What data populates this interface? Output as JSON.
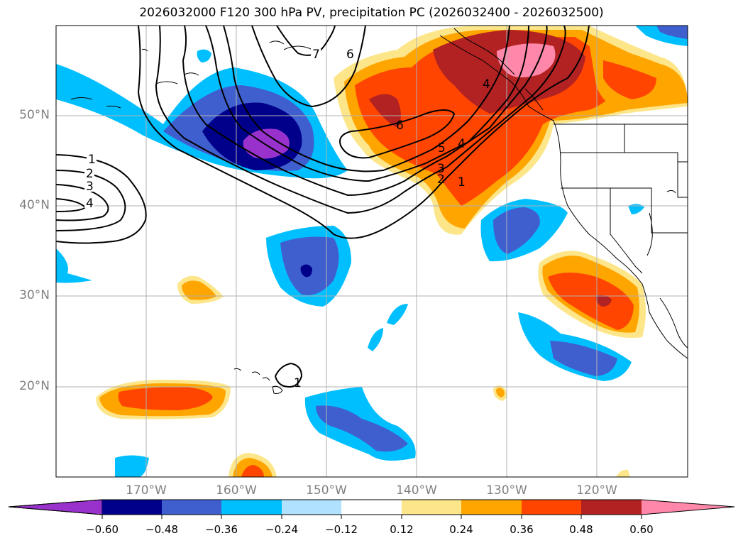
{
  "title": "2026032000 F120 300 hPa PV, precipitation PC (2026032400 - 2026032500)",
  "lat_labels": [
    "50°N",
    "40°N",
    "30°N",
    "20°N"
  ],
  "lon_labels": [
    "170°W",
    "160°W",
    "150°W",
    "140°W",
    "130°W",
    "120°W"
  ],
  "colorbar": {
    "ticks": [
      "−0.60",
      "−0.48",
      "−0.36",
      "−0.24",
      "−0.12",
      "0.12",
      "0.24",
      "0.36",
      "0.48",
      "0.60"
    ],
    "colors": [
      "#9932cc",
      "#00008b",
      "#4060cd",
      "#00bfff",
      "#b0e2ff",
      "#ffffff",
      "#fde68a",
      "#ffa500",
      "#ff4500",
      "#b22222",
      "#ff88aa"
    ]
  },
  "contour_labels": [
    "1",
    "2",
    "3",
    "4",
    "6",
    "7",
    "6",
    "5",
    "4",
    "3",
    "2",
    "1",
    "4",
    "1"
  ],
  "colors": {
    "purple": "#9932cc",
    "navy": "#00008b",
    "royal": "#3f5fcf",
    "sky": "#00bfff",
    "pale": "#b0e2ff",
    "yellow": "#fde68a",
    "orange": "#ffa500",
    "redorange": "#ff4500",
    "firebrick": "#b22222",
    "pink": "#ff88aa"
  }
}
